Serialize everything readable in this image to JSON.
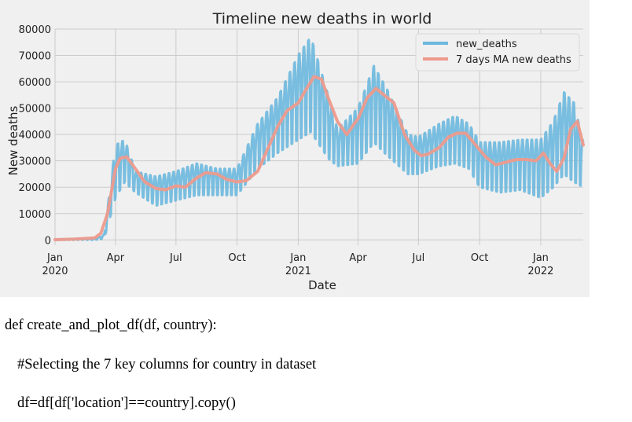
{
  "chart_data": {
    "type": "line",
    "title": "Timeline new deaths in world",
    "xlabel": "Date",
    "ylabel": "New deaths",
    "x_start": "2020-01-01",
    "x_end": "2022-03-06",
    "ylim": [
      -2000,
      80000
    ],
    "yticks": [
      0,
      10000,
      20000,
      30000,
      40000,
      50000,
      60000,
      70000,
      80000
    ],
    "ytick_labels": [
      "0",
      "10000",
      "20000",
      "30000",
      "40000",
      "50000",
      "60000",
      "70000",
      "80000"
    ],
    "xticks": [
      {
        "date": "2020-01-01",
        "label": "Jan",
        "year": "2020"
      },
      {
        "date": "2020-04-01",
        "label": "Apr",
        "year": ""
      },
      {
        "date": "2020-07-01",
        "label": "Jul",
        "year": ""
      },
      {
        "date": "2020-10-01",
        "label": "Oct",
        "year": ""
      },
      {
        "date": "2021-01-01",
        "label": "Jan",
        "year": "2021"
      },
      {
        "date": "2021-04-01",
        "label": "Apr",
        "year": ""
      },
      {
        "date": "2021-07-01",
        "label": "Jul",
        "year": ""
      },
      {
        "date": "2021-10-01",
        "label": "Oct",
        "year": ""
      },
      {
        "date": "2022-01-01",
        "label": "Jan",
        "year": "2022"
      }
    ],
    "grid": true,
    "legend_position": "top-right",
    "series": [
      {
        "name": "new_deaths",
        "color": "#6cb8de",
        "style": "weekly oscillation around the 7-day average, amplitude shown by low/high band",
        "dates": [
          "2020-01-01",
          "2020-02-01",
          "2020-03-01",
          "2020-03-15",
          "2020-04-01",
          "2020-04-15",
          "2020-05-01",
          "2020-06-01",
          "2020-07-01",
          "2020-08-01",
          "2020-09-01",
          "2020-10-01",
          "2020-11-01",
          "2020-12-01",
          "2021-01-01",
          "2021-01-20",
          "2021-02-15",
          "2021-03-01",
          "2021-04-01",
          "2021-04-25",
          "2021-05-15",
          "2021-06-15",
          "2021-07-01",
          "2021-08-01",
          "2021-08-25",
          "2021-09-15",
          "2021-10-01",
          "2021-11-01",
          "2021-12-01",
          "2022-01-01",
          "2022-01-20",
          "2022-02-05",
          "2022-02-20",
          "2022-03-06"
        ],
        "low": [
          0,
          0,
          0,
          500,
          16000,
          22000,
          18000,
          13000,
          15000,
          17000,
          17000,
          17000,
          27000,
          33000,
          38000,
          41000,
          31000,
          28000,
          29000,
          37000,
          32000,
          25000,
          25000,
          28000,
          29000,
          27000,
          20000,
          18000,
          19000,
          16000,
          20000,
          25000,
          22000,
          20000
        ],
        "high": [
          0,
          500,
          500,
          2000,
          36000,
          38000,
          26000,
          24000,
          26000,
          29000,
          27000,
          27000,
          44000,
          54000,
          70000,
          77000,
          55000,
          42000,
          50000,
          66000,
          57000,
          40000,
          39000,
          44000,
          47000,
          44000,
          37000,
          37000,
          38000,
          38000,
          45000,
          56000,
          52000,
          37000
        ]
      },
      {
        "name": "7 days MA new deaths",
        "color": "#ee9a8c",
        "dates": [
          "2020-01-01",
          "2020-02-01",
          "2020-03-01",
          "2020-03-10",
          "2020-03-20",
          "2020-04-01",
          "2020-04-08",
          "2020-04-18",
          "2020-05-01",
          "2020-05-15",
          "2020-06-01",
          "2020-06-15",
          "2020-07-01",
          "2020-07-15",
          "2020-08-01",
          "2020-08-15",
          "2020-09-01",
          "2020-09-15",
          "2020-10-01",
          "2020-10-15",
          "2020-11-01",
          "2020-11-15",
          "2020-12-01",
          "2020-12-15",
          "2021-01-01",
          "2021-01-15",
          "2021-01-25",
          "2021-02-05",
          "2021-02-15",
          "2021-03-01",
          "2021-03-15",
          "2021-04-01",
          "2021-04-15",
          "2021-04-28",
          "2021-05-10",
          "2021-05-25",
          "2021-06-10",
          "2021-06-25",
          "2021-07-05",
          "2021-07-15",
          "2021-08-01",
          "2021-08-15",
          "2021-08-28",
          "2021-09-10",
          "2021-09-25",
          "2021-10-10",
          "2021-10-25",
          "2021-11-10",
          "2021-11-25",
          "2021-12-10",
          "2021-12-25",
          "2022-01-05",
          "2022-01-15",
          "2022-01-25",
          "2022-02-05",
          "2022-02-15",
          "2022-02-25",
          "2022-03-06"
        ],
        "values": [
          100,
          300,
          800,
          2500,
          10000,
          27000,
          31000,
          31500,
          27000,
          22000,
          19500,
          19000,
          20500,
          20000,
          23500,
          25500,
          25000,
          23000,
          22000,
          22500,
          26000,
          34000,
          43000,
          49000,
          52000,
          58000,
          62000,
          61000,
          54000,
          45000,
          40000,
          46000,
          54000,
          57500,
          55000,
          52000,
          40000,
          34000,
          32000,
          32500,
          35000,
          39000,
          40500,
          40500,
          36000,
          31500,
          28500,
          29500,
          30500,
          30500,
          30000,
          33000,
          29000,
          26000,
          31000,
          42000,
          45000,
          36000
        ]
      }
    ]
  },
  "code": {
    "line1": "def create_and_plot_df(df, country):",
    "line2": "#Selecting the 7 key columns for country in dataset",
    "line3": "df=df[df['location']==country].copy()"
  }
}
